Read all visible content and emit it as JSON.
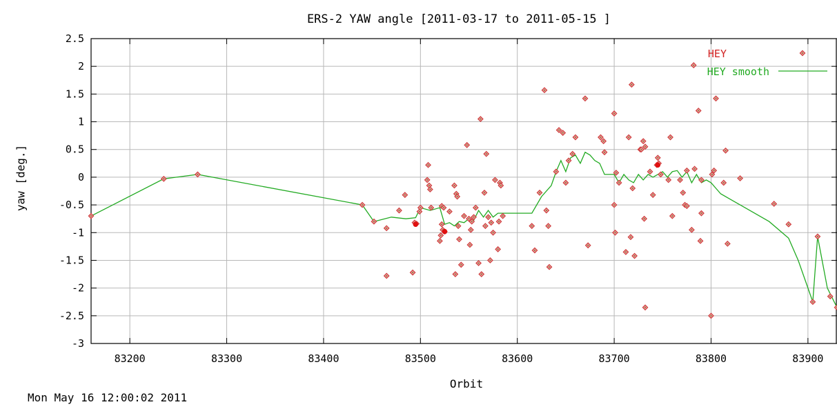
{
  "chart_data": {
    "type": "scatter",
    "title": "ERS-2 YAW angle [2011-03-17 to 2011-05-15 ]",
    "xlabel": "Orbit",
    "ylabel": "yaw [deg.]",
    "xlim": [
      83160,
      83930
    ],
    "ylim": [
      -3,
      2.5
    ],
    "xticks": [
      83200,
      83300,
      83400,
      83500,
      83600,
      83700,
      83800,
      83900
    ],
    "xtick_labels": [
      "83200",
      "83300",
      "83400",
      "83500",
      "83600",
      "83700",
      "83800",
      "83900"
    ],
    "yticks": [
      2.5,
      2,
      1.5,
      1,
      0.5,
      0,
      -0.5,
      -1,
      -1.5,
      -2,
      -2.5,
      -3
    ],
    "ytick_labels": [
      "2.5",
      "2",
      "1.5",
      "1",
      "0.5",
      "0",
      "-0.5",
      "-1",
      "-1.5",
      "-2",
      "-2.5",
      "-3"
    ],
    "grid": true,
    "legend_position": "top-right",
    "series": [
      {
        "name": "HEY",
        "style": "points",
        "color": "#d04040",
        "points": [
          [
            83160,
            -0.7
          ],
          [
            83235,
            -0.03
          ],
          [
            83270,
            0.05
          ],
          [
            83440,
            -0.5
          ],
          [
            83452,
            -0.8
          ],
          [
            83465,
            -0.92
          ],
          [
            83465,
            -1.78
          ],
          [
            83478,
            -0.6
          ],
          [
            83484,
            -0.32
          ],
          [
            83492,
            -1.72
          ],
          [
            83494,
            -0.82
          ],
          [
            83496,
            -0.84
          ],
          [
            83499,
            -0.62
          ],
          [
            83500,
            -0.55
          ],
          [
            83507,
            -0.05
          ],
          [
            83508,
            0.22
          ],
          [
            83509,
            -0.15
          ],
          [
            83510,
            -0.22
          ],
          [
            83511,
            -0.55
          ],
          [
            83520,
            -1.15
          ],
          [
            83521,
            -1.05
          ],
          [
            83522,
            -0.85
          ],
          [
            83522,
            -0.52
          ],
          [
            83523,
            -0.95
          ],
          [
            83524,
            -0.55
          ],
          [
            83525,
            -0.98
          ],
          [
            83530,
            -0.62
          ],
          [
            83535,
            -0.15
          ],
          [
            83537,
            -0.3
          ],
          [
            83538,
            -0.35
          ],
          [
            83536,
            -1.75
          ],
          [
            83539,
            -0.88
          ],
          [
            83540,
            -1.12
          ],
          [
            83542,
            -1.58
          ],
          [
            83545,
            -0.7
          ],
          [
            83548,
            0.58
          ],
          [
            83550,
            -0.75
          ],
          [
            83551,
            -1.22
          ],
          [
            83552,
            -0.95
          ],
          [
            83553,
            -0.8
          ],
          [
            83555,
            -0.72
          ],
          [
            83557,
            -0.55
          ],
          [
            83560,
            -1.55
          ],
          [
            83562,
            1.05
          ],
          [
            83563,
            -1.75
          ],
          [
            83566,
            -0.28
          ],
          [
            83567,
            -0.88
          ],
          [
            83568,
            0.42
          ],
          [
            83570,
            -0.72
          ],
          [
            83572,
            -1.5
          ],
          [
            83573,
            -0.82
          ],
          [
            83575,
            -1.0
          ],
          [
            83577,
            -0.05
          ],
          [
            83580,
            -1.3
          ],
          [
            83581,
            -0.8
          ],
          [
            83582,
            -0.1
          ],
          [
            83583,
            -0.15
          ],
          [
            83585,
            -0.7
          ],
          [
            83615,
            -0.88
          ],
          [
            83618,
            -1.32
          ],
          [
            83623,
            -0.28
          ],
          [
            83628,
            1.57
          ],
          [
            83630,
            -0.6
          ],
          [
            83632,
            -0.88
          ],
          [
            83633,
            -1.62
          ],
          [
            83640,
            0.1
          ],
          [
            83643,
            0.85
          ],
          [
            83647,
            0.8
          ],
          [
            83650,
            -0.1
          ],
          [
            83653,
            0.3
          ],
          [
            83657,
            0.42
          ],
          [
            83660,
            0.72
          ],
          [
            83670,
            1.42
          ],
          [
            83673,
            -1.23
          ],
          [
            83686,
            0.72
          ],
          [
            83689,
            0.65
          ],
          [
            83690,
            0.45
          ],
          [
            83700,
            1.15
          ],
          [
            83700,
            -0.5
          ],
          [
            83701,
            -1.0
          ],
          [
            83702,
            0.08
          ],
          [
            83705,
            -0.1
          ],
          [
            83712,
            -1.35
          ],
          [
            83715,
            0.72
          ],
          [
            83717,
            -1.08
          ],
          [
            83718,
            1.67
          ],
          [
            83719,
            -0.2
          ],
          [
            83721,
            -1.42
          ],
          [
            83727,
            0.5
          ],
          [
            83728,
            0.5
          ],
          [
            83730,
            0.65
          ],
          [
            83731,
            -0.75
          ],
          [
            83732,
            0.55
          ],
          [
            83732,
            -2.35
          ],
          [
            83737,
            0.1
          ],
          [
            83740,
            -0.32
          ],
          [
            83744,
            0.22
          ],
          [
            83745,
            0.35
          ],
          [
            83746,
            0.25
          ],
          [
            83748,
            0.05
          ],
          [
            83756,
            -0.05
          ],
          [
            83758,
            0.72
          ],
          [
            83760,
            -0.7
          ],
          [
            83768,
            -0.05
          ],
          [
            83771,
            -0.28
          ],
          [
            83773,
            -0.5
          ],
          [
            83775,
            -0.52
          ],
          [
            83775,
            0.12
          ],
          [
            83780,
            -0.95
          ],
          [
            83782,
            2.02
          ],
          [
            83783,
            0.15
          ],
          [
            83787,
            1.2
          ],
          [
            83789,
            -1.15
          ],
          [
            83790,
            -0.05
          ],
          [
            83790,
            -0.65
          ],
          [
            83800,
            -2.5
          ],
          [
            83801,
            0.05
          ],
          [
            83803,
            0.12
          ],
          [
            83805,
            1.42
          ],
          [
            83813,
            -0.1
          ],
          [
            83815,
            0.48
          ],
          [
            83817,
            -1.2
          ],
          [
            83830,
            -0.02
          ],
          [
            83865,
            -0.48
          ],
          [
            83880,
            -0.85
          ],
          [
            83905,
            -2.25
          ],
          [
            83910,
            -1.07
          ],
          [
            83923,
            -2.15
          ],
          [
            83930,
            -2.35
          ]
        ]
      },
      {
        "name": "HEY smooth",
        "style": "line",
        "color": "#22aa22",
        "points": [
          [
            83160,
            -0.7
          ],
          [
            83235,
            -0.03
          ],
          [
            83270,
            0.05
          ],
          [
            83440,
            -0.5
          ],
          [
            83452,
            -0.8
          ],
          [
            83470,
            -0.72
          ],
          [
            83485,
            -0.75
          ],
          [
            83495,
            -0.73
          ],
          [
            83500,
            -0.55
          ],
          [
            83510,
            -0.6
          ],
          [
            83520,
            -0.55
          ],
          [
            83525,
            -0.85
          ],
          [
            83530,
            -0.82
          ],
          [
            83535,
            -0.88
          ],
          [
            83540,
            -0.8
          ],
          [
            83545,
            -0.82
          ],
          [
            83550,
            -0.75
          ],
          [
            83555,
            -0.78
          ],
          [
            83560,
            -0.6
          ],
          [
            83565,
            -0.72
          ],
          [
            83570,
            -0.6
          ],
          [
            83575,
            -0.72
          ],
          [
            83580,
            -0.65
          ],
          [
            83590,
            -0.65
          ],
          [
            83615,
            -0.65
          ],
          [
            83625,
            -0.35
          ],
          [
            83635,
            -0.15
          ],
          [
            83640,
            0.1
          ],
          [
            83645,
            0.3
          ],
          [
            83650,
            0.1
          ],
          [
            83655,
            0.35
          ],
          [
            83660,
            0.4
          ],
          [
            83665,
            0.25
          ],
          [
            83670,
            0.45
          ],
          [
            83675,
            0.4
          ],
          [
            83680,
            0.3
          ],
          [
            83685,
            0.25
          ],
          [
            83690,
            0.05
          ],
          [
            83700,
            0.05
          ],
          [
            83705,
            -0.1
          ],
          [
            83710,
            0.05
          ],
          [
            83715,
            -0.05
          ],
          [
            83720,
            -0.1
          ],
          [
            83725,
            0.05
          ],
          [
            83730,
            -0.05
          ],
          [
            83735,
            0.05
          ],
          [
            83740,
            0.0
          ],
          [
            83745,
            0.05
          ],
          [
            83750,
            0.1
          ],
          [
            83755,
            0.0
          ],
          [
            83760,
            0.1
          ],
          [
            83765,
            0.12
          ],
          [
            83770,
            0.0
          ],
          [
            83775,
            0.1
          ],
          [
            83780,
            -0.1
          ],
          [
            83785,
            0.05
          ],
          [
            83790,
            -0.1
          ],
          [
            83795,
            -0.05
          ],
          [
            83800,
            -0.1
          ],
          [
            83805,
            -0.2
          ],
          [
            83810,
            -0.3
          ],
          [
            83820,
            -0.4
          ],
          [
            83840,
            -0.6
          ],
          [
            83860,
            -0.8
          ],
          [
            83880,
            -1.1
          ],
          [
            83890,
            -1.5
          ],
          [
            83900,
            -2.0
          ],
          [
            83905,
            -2.25
          ],
          [
            83910,
            -1.07
          ],
          [
            83920,
            -2.0
          ],
          [
            83930,
            -2.35
          ]
        ]
      }
    ],
    "highlight_points": [
      [
        83495,
        -0.85
      ],
      [
        83525,
        -0.98
      ],
      [
        83745,
        0.22
      ]
    ]
  },
  "footer": {
    "timestamp": "Mon May 16 12:00:02 2011"
  }
}
